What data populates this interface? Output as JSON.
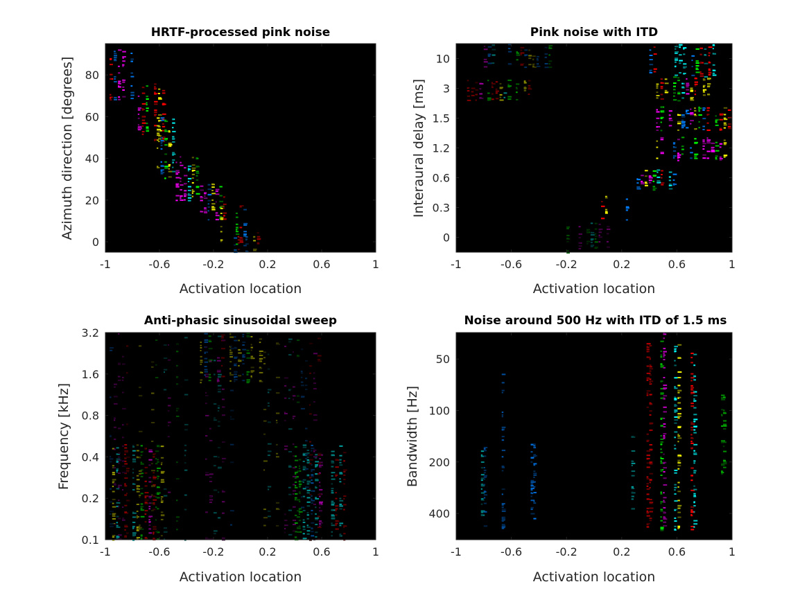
{
  "chart_data": [
    {
      "type": "heatmap",
      "title": "HRTF-processed pink noise",
      "xlabel": "Activation location",
      "ylabel": "Azimuth direction [degrees]",
      "xlim": [
        -1,
        1
      ],
      "ylim": [
        -5,
        95
      ],
      "xticks": [
        "-1",
        "-0.6",
        "-0.2",
        "0.2",
        "0.6",
        "1"
      ],
      "yticks": [
        "0",
        "20",
        "40",
        "60",
        "80"
      ],
      "yscale": "linear",
      "active_regions": [
        {
          "x": [
            -1,
            -0.72
          ],
          "y": [
            68,
            93
          ],
          "level": 1
        },
        {
          "x": [
            -0.76,
            -0.55
          ],
          "y": [
            48,
            76
          ],
          "level": 1
        },
        {
          "x": [
            -0.62,
            -0.45
          ],
          "y": [
            30,
            60
          ],
          "level": 1
        },
        {
          "x": [
            -0.48,
            -0.3
          ],
          "y": [
            20,
            42
          ],
          "level": 0.9
        },
        {
          "x": [
            -0.3,
            -0.1
          ],
          "y": [
            10,
            28
          ],
          "level": 0.8
        },
        {
          "x": [
            -0.15,
            0.05
          ],
          "y": [
            -2,
            18
          ],
          "level": 0.8
        },
        {
          "x": [
            -0.05,
            0.15
          ],
          "y": [
            -5,
            5
          ],
          "level": 0.6
        }
      ]
    },
    {
      "type": "heatmap",
      "title": "Pink noise with ITD",
      "xlabel": "Activation location",
      "ylabel": "Interaural delay [ms]",
      "xlim": [
        -1,
        1
      ],
      "yscale": "categorical",
      "yticks": [
        "0",
        "0.3",
        "0.6",
        "1.2",
        "1.5",
        "3",
        "10"
      ],
      "active_regions": [
        {
          "x": [
            0.4,
            0.95
          ],
          "y": [
            5.4,
            6.5
          ],
          "level": 1
        },
        {
          "x": [
            0.45,
            0.85
          ],
          "y": [
            4.6,
            5.4
          ],
          "level": 1
        },
        {
          "x": [
            0.45,
            1
          ],
          "y": [
            3.6,
            4.4
          ],
          "level": 1
        },
        {
          "x": [
            0.45,
            1
          ],
          "y": [
            2.6,
            3.4
          ],
          "level": 1
        },
        {
          "x": [
            0.25,
            0.6
          ],
          "y": [
            1.6,
            2.3
          ],
          "level": 1
        },
        {
          "x": [
            0.05,
            0.35
          ],
          "y": [
            0.6,
            1.4
          ],
          "level": 1
        },
        {
          "x": [
            -0.2,
            0.12
          ],
          "y": [
            -0.5,
            0.5
          ],
          "level": 0.35
        },
        {
          "x": [
            -0.8,
            -0.3
          ],
          "y": [
            5.7,
            6.5
          ],
          "level": 0.45
        },
        {
          "x": [
            -0.95,
            -0.45
          ],
          "y": [
            4.6,
            5.3
          ],
          "level": 0.55
        }
      ]
    },
    {
      "type": "heatmap",
      "title": "Anti-phasic sinusoidal sweep",
      "xlabel": "Activation location",
      "ylabel": "Frequency [kHz]",
      "xlim": [
        -1,
        1
      ],
      "ylim": [
        0.1,
        3.2
      ],
      "yscale": "log",
      "xticks": [
        "-1",
        "-0.6",
        "-0.2",
        "0.2",
        "0.6",
        "1"
      ],
      "yticks": [
        "0.1",
        "0.2",
        "0.4",
        "0.8",
        "1.6",
        "3.2"
      ],
      "active_regions": [
        {
          "x": [
            -0.95,
            -0.5
          ],
          "y": [
            0.1,
            0.5
          ],
          "level": 0.55
        },
        {
          "x": [
            0.4,
            0.85
          ],
          "y": [
            0.1,
            0.5
          ],
          "level": 0.55
        },
        {
          "x": [
            -0.3,
            0.2
          ],
          "y": [
            1.4,
            3.2
          ],
          "level": 0.45
        },
        {
          "x": [
            -1,
            1
          ],
          "y": [
            0.1,
            3.2
          ],
          "level": 0.3
        }
      ]
    },
    {
      "type": "heatmap",
      "title": "Noise around 500 Hz with ITD of 1.5 ms",
      "xlabel": "Activation location",
      "ylabel": "Bandwidth [Hz]",
      "xlim": [
        -1,
        1
      ],
      "ylim": [
        570,
        35
      ],
      "yscale": "log",
      "xticks": [
        "-1",
        "-0.6",
        "-0.2",
        "0.2",
        "0.6",
        "1"
      ],
      "yticks": [
        "50",
        "100",
        "200",
        "400"
      ],
      "active_regions": [
        {
          "x": [
            -0.82,
            -0.78
          ],
          "y": [
            160,
            480
          ],
          "level": 0.6
        },
        {
          "x": [
            -0.69,
            -0.65
          ],
          "y": [
            55,
            500
          ],
          "level": 0.6
        },
        {
          "x": [
            -0.57,
            -0.53
          ],
          "y": [
            150,
            500
          ],
          "level": 0.7
        },
        {
          "x": [
            -0.46,
            -0.42
          ],
          "y": [
            150,
            440
          ],
          "level": 0.8
        },
        {
          "x": [
            -0.36,
            -0.33
          ],
          "y": [
            200,
            370
          ],
          "level": 0.5
        },
        {
          "x": [
            0.27,
            0.31
          ],
          "y": [
            140,
            400
          ],
          "level": 0.6
        },
        {
          "x": [
            0.38,
            0.42
          ],
          "y": [
            38,
            480
          ],
          "level": 0.7
        },
        {
          "x": [
            0.48,
            0.52
          ],
          "y": [
            35,
            500
          ],
          "level": 0.8
        },
        {
          "x": [
            0.58,
            0.63
          ],
          "y": [
            40,
            500
          ],
          "level": 0.9
        },
        {
          "x": [
            0.7,
            0.74
          ],
          "y": [
            45,
            500
          ],
          "level": 1
        },
        {
          "x": [
            0.81,
            0.84
          ],
          "y": [
            75,
            310
          ],
          "level": 0.8
        },
        {
          "x": [
            0.92,
            0.95
          ],
          "y": [
            80,
            240
          ],
          "level": 0.6
        }
      ]
    }
  ],
  "colors": {
    "background": "#000000",
    "palette": [
      "#ff00ff",
      "#ffff00",
      "#00ffff",
      "#00ff00",
      "#0080ff",
      "#ff0000"
    ]
  }
}
